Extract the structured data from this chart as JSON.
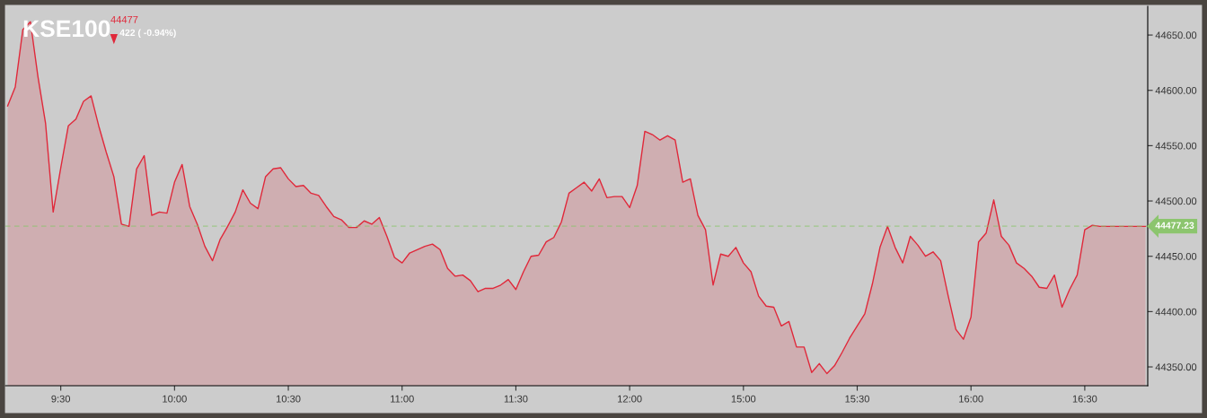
{
  "chart_data": {
    "type": "area",
    "title": "KSE100",
    "subtitle": "44477",
    "annotations": [
      "422 ( -0.94%)"
    ],
    "categories": [
      null,
      null,
      null,
      null,
      null,
      null,
      null,
      "9:30",
      null,
      null,
      null,
      null,
      null,
      null,
      null,
      null,
      null,
      null,
      null,
      null,
      null,
      null,
      "10:00",
      null,
      null,
      null,
      null,
      null,
      null,
      null,
      null,
      null,
      null,
      null,
      null,
      null,
      null,
      "10:30",
      null,
      null,
      null,
      null,
      null,
      null,
      null,
      null,
      null,
      null,
      null,
      null,
      null,
      null,
      "11:00",
      null,
      null,
      null,
      null,
      null,
      null,
      null,
      null,
      null,
      null,
      null,
      null,
      null,
      null,
      "11:30",
      null,
      null,
      null,
      null,
      null,
      null,
      null,
      null,
      null,
      null,
      null,
      null,
      null,
      null,
      "12:00",
      null,
      null,
      null,
      null,
      null,
      null,
      null,
      null,
      null,
      null,
      null,
      null,
      null,
      null,
      "15:00",
      null,
      null,
      null,
      null,
      null,
      null,
      null,
      null,
      null,
      null,
      null,
      null,
      null,
      null,
      "15:30",
      null,
      null,
      null,
      null,
      null,
      null,
      null,
      null,
      null,
      null,
      null,
      null,
      null,
      null,
      "16:00",
      null,
      null,
      null,
      null,
      null,
      null,
      null,
      null,
      null,
      null,
      null,
      null,
      null,
      null,
      "16:30",
      null,
      null,
      null,
      null,
      null,
      null,
      null,
      null
    ],
    "series": [
      {
        "color": "#e0283a",
        "values": [
          44586,
          44603,
          44655,
          44662,
          44612,
          44570,
          44490,
          44530,
          44568,
          44574,
          44590,
          44595,
          44568,
          44544,
          44522,
          44479,
          44477,
          44529,
          44541,
          44487,
          44490,
          44489,
          44517,
          44533,
          44495,
          44479,
          44459,
          44446,
          44465,
          44477,
          44490,
          44510,
          44498,
          44493,
          44522,
          44529,
          44530,
          44520,
          44513,
          44514,
          44507,
          44505,
          44495,
          44486,
          44483,
          44476,
          44476,
          44482,
          44479,
          44485,
          44468,
          44449,
          44444,
          44453,
          44456,
          44459,
          44461,
          44456,
          44439,
          44432,
          44433,
          44428,
          44418,
          44421,
          44421,
          44424,
          44429,
          44420,
          44436,
          44450,
          44451,
          44463,
          44467,
          44481,
          44507,
          44512,
          44517,
          44509,
          44520,
          44503,
          44504,
          44504,
          44494,
          44514,
          44563,
          44560,
          44555,
          44559,
          44555,
          44517,
          44520,
          44487,
          44474,
          44424,
          44452,
          44450,
          44458,
          44444,
          44436,
          44414,
          44405,
          44404,
          44387,
          44391,
          44368,
          44368,
          44345,
          44353,
          44344,
          44351,
          44363,
          44376,
          44387,
          44398,
          44425,
          44458,
          44477,
          44458,
          44444,
          44468,
          44460,
          44450,
          44454,
          44446,
          44414,
          44384,
          44375,
          44395,
          44463,
          44471,
          44501,
          44468,
          44460,
          44444,
          44439,
          44432,
          44422,
          44421,
          44433,
          44404,
          44420,
          44433,
          44474,
          44478,
          44477,
          44477,
          44477,
          44477,
          44477,
          44477,
          44477
        ]
      }
    ],
    "ylim": [
      44333,
      44676
    ],
    "yticks": [
      {
        "value": 44350,
        "label": "44350.00"
      },
      {
        "value": 44400,
        "label": "44400.00"
      },
      {
        "value": 44450,
        "label": "44450.00"
      },
      {
        "value": 44500,
        "label": "44500.00"
      },
      {
        "value": 44550,
        "label": "44550.00"
      },
      {
        "value": 44600,
        "label": "44600.00"
      },
      {
        "value": 44650,
        "label": "44650.00"
      }
    ],
    "ref_lines": [
      {
        "axis": "y",
        "value": 44477.23,
        "label": "44477.23",
        "color": "#8cc56e",
        "line_style": "dashed"
      }
    ],
    "grid": false,
    "legend": false
  }
}
